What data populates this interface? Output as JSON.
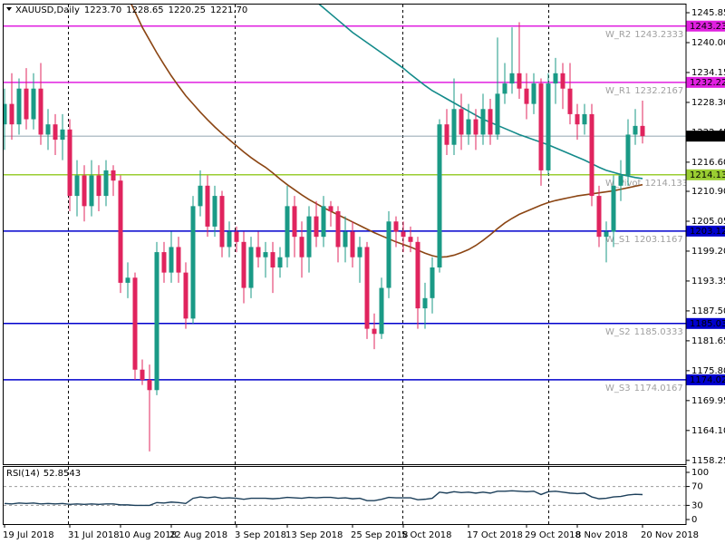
{
  "chart_data": {
    "type": "candlestick",
    "symbol": "XAUUSD,Daily",
    "header_values": [
      1223.7,
      1228.65,
      1220.25,
      1221.7
    ],
    "header_value_labels": [
      "1223.70",
      "1228.65",
      "1220.25",
      "1221.70"
    ],
    "categories": [
      "19 Jul 2018",
      null,
      null,
      null,
      null,
      null,
      null,
      null,
      null,
      "31 Jul 2018",
      null,
      null,
      null,
      null,
      null,
      null,
      "10 Aug 2018",
      null,
      null,
      null,
      null,
      null,
      null,
      "22 Aug 2018",
      null,
      null,
      null,
      null,
      null,
      null,
      null,
      null,
      "3 Sep 2018",
      null,
      null,
      null,
      null,
      null,
      null,
      "13 Sep 2018",
      null,
      null,
      null,
      null,
      null,
      null,
      null,
      null,
      "25 Sep 2018",
      null,
      null,
      null,
      null,
      null,
      null,
      "5 Oct 2018",
      null,
      null,
      null,
      null,
      null,
      null,
      null,
      null,
      "17 Oct 2018",
      null,
      null,
      null,
      null,
      null,
      null,
      null,
      "29 Oct 2018",
      null,
      null,
      null,
      null,
      null,
      null,
      "8 Nov 2018",
      null,
      null,
      null,
      null,
      null,
      null,
      null,
      null,
      "20 Nov 2018"
    ],
    "open": [
      1224,
      1228,
      1224,
      1231,
      1225,
      1231,
      1222,
      1224,
      1221,
      1223,
      1210,
      1214,
      1208,
      1214,
      1210,
      1215,
      1213,
      1193,
      1194,
      1176,
      1174,
      1172,
      1199,
      1195,
      1200,
      1195,
      1186,
      1208,
      1212,
      1204,
      1210,
      1200,
      1203,
      1201,
      1192,
      1200,
      1198,
      1199,
      1196,
      1198,
      1208,
      1202,
      1198,
      1206,
      1202,
      1208,
      1207,
      1200,
      1203,
      1198,
      1200,
      1184,
      1183,
      1192,
      1205,
      1203,
      1202,
      1201,
      1188,
      1190,
      1196,
      1224,
      1220,
      1227,
      1222,
      1225,
      1222,
      1227,
      1222,
      1230,
      1232,
      1234,
      1231,
      1228,
      1232,
      1215,
      1232,
      1234,
      1231,
      1226,
      1224,
      1226,
      1210,
      1202,
      1203,
      1212,
      1214,
      1222,
      1223.7
    ],
    "high": [
      1231,
      1234,
      1233,
      1235,
      1234,
      1236,
      1227,
      1226,
      1226,
      1225,
      1217,
      1216,
      1217,
      1216,
      1217,
      1216,
      1214,
      1197,
      1195,
      1178,
      1177,
      1201,
      1201,
      1203,
      1202,
      1197,
      1210,
      1215,
      1214,
      1212,
      1211,
      1205,
      1204,
      1203,
      1202,
      1203,
      1201,
      1201,
      1200,
      1212,
      1210,
      1205,
      1208,
      1209,
      1210,
      1209,
      1208,
      1206,
      1205,
      1202,
      1201,
      1187,
      1194,
      1207,
      1206,
      1205,
      1204,
      1202,
      1193,
      1198,
      1225,
      1227,
      1233,
      1230,
      1228,
      1227,
      1230,
      1229,
      1241,
      1236,
      1243,
      1244,
      1234,
      1234,
      1233,
      1234,
      1237,
      1236,
      1236,
      1228,
      1228,
      1228,
      1212,
      1205,
      1214,
      1217,
      1225,
      1227,
      1228.65
    ],
    "low": [
      1219,
      1221,
      1222,
      1223,
      1223,
      1220,
      1219,
      1218,
      1217,
      1207,
      1206,
      1205,
      1206,
      1207,
      1208,
      1210,
      1191,
      1190,
      1174,
      1173,
      1160,
      1171,
      1193,
      1193,
      1193,
      1184,
      1185,
      1206,
      1202,
      1202,
      1198,
      1198,
      1199,
      1189,
      1190,
      1196,
      1194,
      1191,
      1194,
      1196,
      1198,
      1194,
      1195,
      1200,
      1200,
      1204,
      1197,
      1197,
      1196,
      1193,
      1182,
      1180,
      1182,
      1190,
      1200,
      1199,
      1199,
      1184,
      1184,
      1187,
      1195,
      1218,
      1218,
      1219,
      1220,
      1219,
      1220,
      1220,
      1221,
      1228,
      1230,
      1229,
      1225,
      1226,
      1212,
      1214,
      1228,
      1227,
      1224,
      1221,
      1222,
      1208,
      1200,
      1197,
      1200,
      1209,
      1212,
      1220,
      1220.25
    ],
    "close": [
      1228,
      1224,
      1231,
      1225,
      1231,
      1222,
      1224,
      1221,
      1223,
      1210,
      1214,
      1208,
      1214,
      1210,
      1215,
      1213,
      1193,
      1194,
      1176,
      1174,
      1172,
      1199,
      1195,
      1200,
      1195,
      1186,
      1208,
      1212,
      1204,
      1210,
      1200,
      1203,
      1201,
      1192,
      1200,
      1198,
      1199,
      1196,
      1198,
      1208,
      1202,
      1198,
      1206,
      1202,
      1208,
      1207,
      1200,
      1203,
      1198,
      1200,
      1184,
      1183,
      1192,
      1205,
      1203,
      1202,
      1201,
      1188,
      1190,
      1196,
      1224,
      1220,
      1227,
      1222,
      1225,
      1222,
      1227,
      1222,
      1230,
      1232,
      1234,
      1231,
      1228,
      1232,
      1215,
      1232,
      1234,
      1231,
      1226,
      1224,
      1226,
      1210,
      1202,
      1203,
      1212,
      1214,
      1222,
      1223.7,
      1221.7
    ],
    "bull_color": "#1a9a86",
    "bear_color": "#e0245e",
    "ylim": [
      1157.5,
      1247.45
    ],
    "yticks": [
      1245.85,
      {
        "value": 1240,
        "label": "1240.00"
      },
      1234.15,
      {
        "value": 1228.3,
        "label": "1228.30"
      },
      1222.45,
      {
        "value": 1216.6,
        "label": "1216.60"
      },
      {
        "value": 1210.9,
        "label": "1210.90"
      },
      1205.05,
      {
        "value": 1199.2,
        "label": "1199.20"
      },
      1193.35,
      {
        "value": 1187.5,
        "label": "1187.50"
      },
      1181.65,
      {
        "value": 1175.8,
        "label": "1175.80"
      },
      1169.95,
      {
        "value": 1164.1,
        "label": "1164.10"
      },
      1158.25
    ],
    "moving_averages": [
      {
        "color": "#138a8a",
        "values": [
          null,
          null,
          null,
          null,
          null,
          null,
          null,
          null,
          null,
          null,
          null,
          null,
          null,
          null,
          null,
          null,
          null,
          null,
          null,
          null,
          null,
          null,
          null,
          null,
          null,
          null,
          null,
          null,
          null,
          null,
          null,
          null,
          null,
          null,
          null,
          null,
          null,
          null,
          null,
          null,
          null,
          null,
          1249,
          1248,
          1246.8,
          1245.6,
          1244.4,
          1243.2,
          1242,
          1241,
          1240,
          1239,
          1238,
          1237,
          1236,
          1235,
          1233.8,
          1232.7,
          1231.6,
          1230.6,
          1229.8,
          1229,
          1228.2,
          1227.4,
          1226.6,
          1225.8,
          1225,
          1224.4,
          1223.8,
          1223.2,
          1222.6,
          1222,
          1221.5,
          1221,
          1220.5,
          1220,
          1219.4,
          1218.8,
          1218.2,
          1217.6,
          1217,
          1216.3,
          1215.6,
          1215,
          1214.6,
          1214.2,
          1213.9,
          1213.6,
          1213.4
        ]
      },
      {
        "color": "#8b4513",
        "values": [
          null,
          null,
          null,
          null,
          null,
          null,
          null,
          null,
          null,
          null,
          null,
          null,
          null,
          null,
          null,
          null,
          null,
          1249,
          1246,
          1243,
          1240.5,
          1238,
          1235.7,
          1233.5,
          1231.5,
          1229.6,
          1228,
          1226.4,
          1224.9,
          1223.5,
          1222.2,
          1221,
          1219.8,
          1218.6,
          1217.5,
          1216.5,
          1215.6,
          1214.5,
          1213.3,
          1212.2,
          1211.2,
          1210.2,
          1209.3,
          1208.5,
          1207.7,
          1207,
          1206.3,
          1205.6,
          1204.9,
          1204.2,
          1203.5,
          1202.8,
          1202.2,
          1201.6,
          1201,
          1200.5,
          1200,
          1199.4,
          1198.8,
          1198.3,
          1198,
          1198.1,
          1198.4,
          1198.9,
          1199.5,
          1200.3,
          1201.3,
          1202.4,
          1203.6,
          1204.7,
          1205.6,
          1206.4,
          1207,
          1207.6,
          1208.2,
          1208.7,
          1209.1,
          1209.4,
          1209.7,
          1210,
          1210.2,
          1210.4,
          1210.6,
          1210.8,
          1211,
          1211.3,
          1211.6,
          1211.9,
          1212.2
        ]
      }
    ],
    "levels": [
      {
        "name": "W_R2",
        "value": 1243.2333,
        "label": "1243.23",
        "color": "#e020e0"
      },
      {
        "name": "W_R1",
        "value": 1232.2167,
        "label": "1232.22",
        "color": "#e020e0"
      },
      {
        "name": "W_Pivot",
        "value": 1214.1333,
        "label": "1214.13",
        "color": "#9acd32"
      },
      {
        "name": "W_S1",
        "value": 1203.1167,
        "label": "1203.12",
        "color": "#0000cd"
      },
      {
        "name": "W_S2",
        "value": 1185.0333,
        "label": "1185.03",
        "color": "#0000cd"
      },
      {
        "name": "W_S3",
        "value": 1174.0167,
        "label": "1174.02",
        "color": "#0000cd"
      }
    ],
    "last_price": 1221.7,
    "last_price_label": "1221.70",
    "rsi": {
      "label": "RSI(14)",
      "color": "#1c3f5a",
      "values": [
        34,
        33,
        35,
        34,
        35,
        33,
        34,
        33,
        34,
        32,
        33,
        32,
        33,
        32,
        33,
        33,
        31,
        31,
        30,
        30,
        30,
        36,
        35,
        37,
        36,
        34,
        45,
        48,
        46,
        48,
        45,
        46,
        45,
        43,
        45,
        45,
        45,
        44,
        45,
        47,
        46,
        45,
        47,
        46,
        47,
        47,
        45,
        46,
        44,
        45,
        40,
        40,
        43,
        47,
        46,
        46,
        46,
        42,
        43,
        45,
        58,
        56,
        59,
        57,
        58,
        56,
        58,
        56,
        60,
        60,
        61,
        60,
        59,
        60,
        53,
        59,
        60,
        58,
        56,
        55,
        56,
        48,
        44,
        45,
        48,
        49,
        52,
        53.5,
        52.8543
      ],
      "ylim": [
        -9.6,
        111.5
      ],
      "yticks": [
        100,
        70,
        30,
        0
      ],
      "levels": [
        70,
        30
      ]
    }
  }
}
